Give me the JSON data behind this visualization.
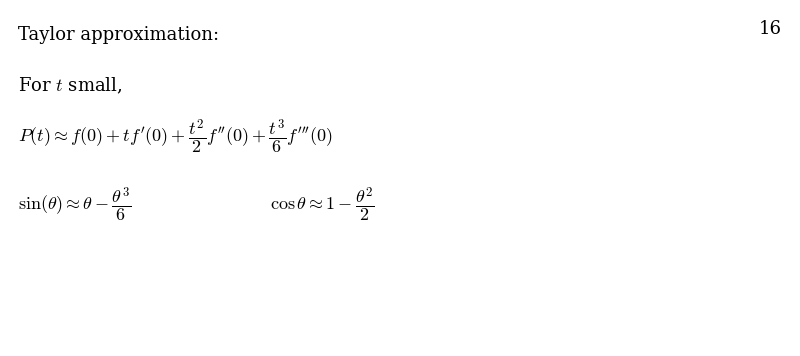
{
  "background_color": "#ffffff",
  "page_number": "16",
  "page_number_fontsize": 13,
  "title_text": "Taylor approximation:",
  "title_fontsize": 13,
  "for_t_small_fontsize": 13,
  "taylor_eq_fontsize": 13,
  "sin_eq_fontsize": 13,
  "cos_eq_fontsize": 13
}
